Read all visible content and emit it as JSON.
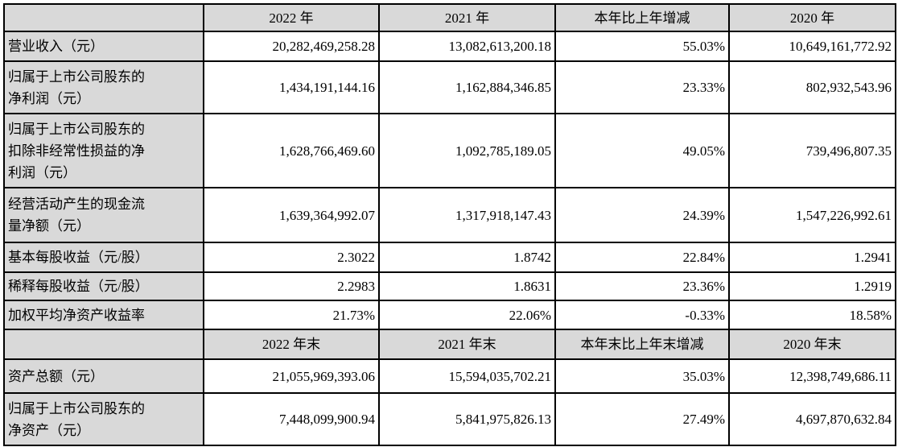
{
  "table": {
    "header1": [
      "",
      "2022 年",
      "2021 年",
      "本年比上年增减",
      "2020 年"
    ],
    "rows1": [
      {
        "label": "营业收入（元）",
        "values": [
          "20,282,469,258.28",
          "13,082,613,200.18",
          "55.03%",
          "10,649,161,772.92"
        ]
      },
      {
        "label": "归属于上市公司股东的\n净利润（元）",
        "values": [
          "1,434,191,144.16",
          "1,162,884,346.85",
          "23.33%",
          "802,932,543.96"
        ]
      },
      {
        "label": "归属于上市公司股东的\n扣除非经常性损益的净\n利润（元）",
        "values": [
          "1,628,766,469.60",
          "1,092,785,189.05",
          "49.05%",
          "739,496,807.35"
        ]
      },
      {
        "label": "经营活动产生的现金流\n量净额（元）",
        "values": [
          "1,639,364,992.07",
          "1,317,918,147.43",
          "24.39%",
          "1,547,226,992.61"
        ]
      },
      {
        "label": "基本每股收益（元/股）",
        "values": [
          "2.3022",
          "1.8742",
          "22.84%",
          "1.2941"
        ]
      },
      {
        "label": "稀释每股收益（元/股）",
        "values": [
          "2.2983",
          "1.8631",
          "23.36%",
          "1.2919"
        ]
      },
      {
        "label": "加权平均净资产收益率",
        "values": [
          "21.73%",
          "22.06%",
          "-0.33%",
          "18.58%"
        ]
      }
    ],
    "header2": [
      "",
      "2022 年末",
      "2021 年末",
      "本年末比上年末增减",
      "2020 年末"
    ],
    "rows2": [
      {
        "label": "资产总额（元）",
        "values": [
          "21,055,969,393.06",
          "15,594,035,702.21",
          "35.03%",
          "12,398,749,686.11"
        ]
      },
      {
        "label": "归属于上市公司股东的\n净资产（元）",
        "values": [
          "7,448,099,900.94",
          "5,841,975,826.13",
          "27.49%",
          "4,697,870,632.84"
        ]
      }
    ],
    "colors": {
      "header_bg": "#d9d9d9",
      "border": "#000000",
      "text": "#000000",
      "cell_bg": "#ffffff"
    }
  }
}
